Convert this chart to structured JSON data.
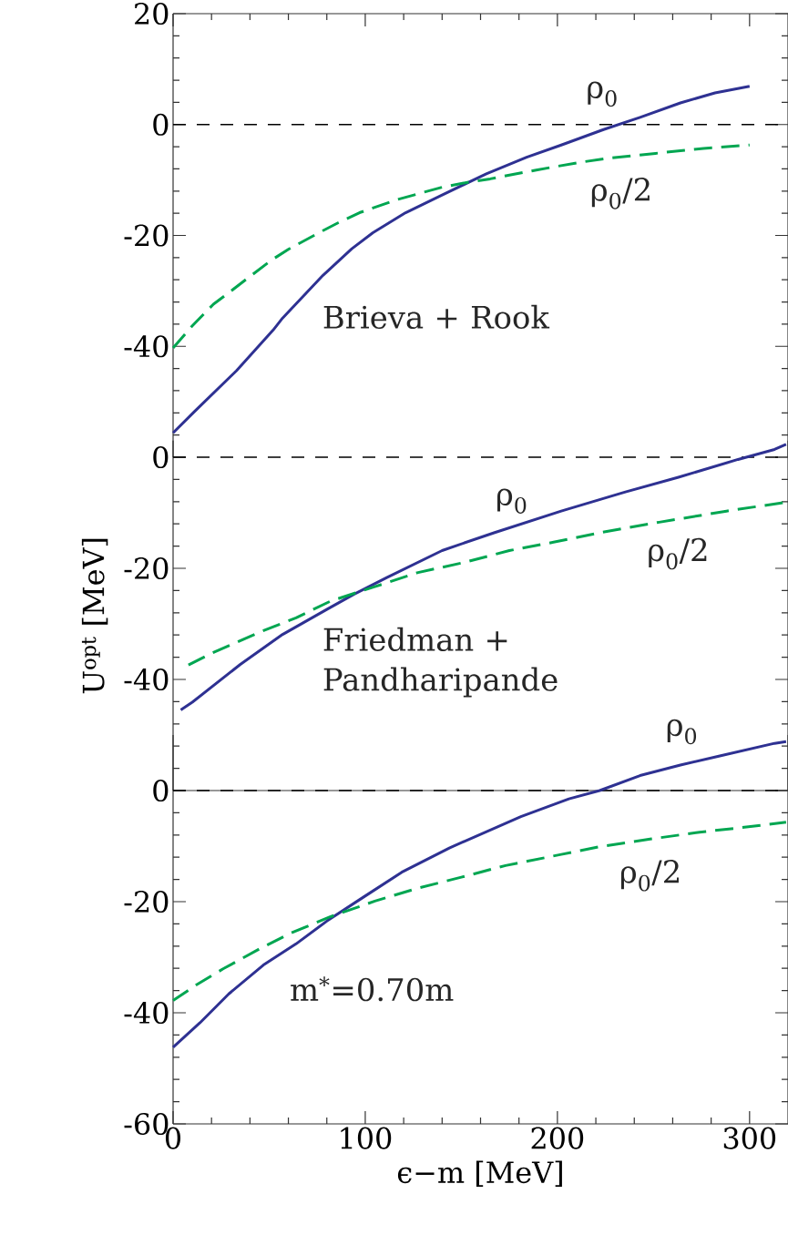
{
  "chart_data": [
    {
      "type": "line",
      "xlim": [
        0,
        320
      ],
      "xticks": [
        0,
        100,
        200,
        300
      ],
      "ylim": [
        -60,
        20
      ],
      "yticks": [
        {
          "value": -60,
          "label": null
        },
        -40,
        -20,
        0,
        20
      ],
      "tick_labels": "y",
      "ref_lines": [
        {
          "axis": "y",
          "value": 0,
          "color": "#000000",
          "line_style": "dashed"
        }
      ],
      "annotations": [
        "Brieva + Rook"
      ],
      "series": [
        {
          "name": "ρ$_{0}$",
          "color": "#2e3192",
          "line_style": "solid",
          "x": [
            0,
            11,
            33,
            52,
            57,
            78,
            93,
            104,
            121,
            140,
            163,
            184,
            202,
            224,
            243,
            264,
            282,
            300
          ],
          "values": [
            -55.6,
            -51.8,
            -44.4,
            -37.1,
            -34.9,
            -27.2,
            -22.4,
            -19.5,
            -15.9,
            -12.7,
            -8.9,
            -5.9,
            -3.7,
            -0.9,
            1.3,
            3.9,
            5.7,
            6.9
          ]
        },
        {
          "name": "ρ$_{0}$/2",
          "color": "#00a651",
          "line_style": "dashed",
          "x": [
            0,
            10,
            21,
            28,
            40,
            51,
            60,
            76,
            86,
            97,
            117,
            140,
            152,
            165,
            189,
            212,
            226,
            251,
            276,
            300
          ],
          "values": [
            -40.3,
            -36.3,
            -32.4,
            -30.6,
            -27.4,
            -24.5,
            -22.5,
            -19.5,
            -17.7,
            -15.9,
            -13.5,
            -11.3,
            -10.5,
            -9.8,
            -8.2,
            -6.8,
            -6.1,
            -5.2,
            -4.3,
            -3.7
          ]
        }
      ]
    },
    {
      "type": "line",
      "xlim": [
        0,
        320
      ],
      "ylim": [
        -60,
        3
      ],
      "yticks": [
        {
          "value": -60,
          "label": null
        },
        -40,
        -20,
        0
      ],
      "tick_labels": "y",
      "ylabel": "U$^{opt}$ [MeV]",
      "ref_lines": [
        {
          "axis": "y",
          "value": 0,
          "color": "#000000",
          "line_style": "dashed"
        }
      ],
      "annotations": [
        "Friedman + Pandharipande"
      ],
      "series": [
        {
          "name": "ρ$_{0}$",
          "color": "#2e3192",
          "line_style": "solid",
          "x": [
            4,
            10,
            35,
            57,
            80,
            94,
            111,
            140,
            167,
            202,
            235,
            263,
            294,
            313,
            319
          ],
          "values": [
            -45.5,
            -44.1,
            -37.3,
            -31.9,
            -27.4,
            -24.7,
            -21.7,
            -16.8,
            -13.6,
            -9.7,
            -6.3,
            -3.6,
            -0.4,
            1.4,
            2.3
          ]
        },
        {
          "name": "ρ$_{0}$/2",
          "color": "#00a651",
          "line_style": "dashed",
          "x": [
            8,
            20,
            45,
            64,
            82,
            105,
            127,
            152,
            175,
            198,
            222,
            253,
            288,
            319
          ],
          "values": [
            -37.4,
            -35.3,
            -31.5,
            -28.9,
            -25.9,
            -23.3,
            -20.8,
            -18.9,
            -16.8,
            -15.3,
            -13.6,
            -11.7,
            -9.7,
            -8.1
          ]
        }
      ]
    },
    {
      "type": "line",
      "xlim": [
        0,
        320
      ],
      "xticks": [
        0,
        100,
        200,
        300
      ],
      "ylim": [
        -60,
        10
      ],
      "yticks": [
        -60,
        -40,
        -20,
        0
      ],
      "xlabel": "ϵ−m [MeV]",
      "ref_lines": [
        {
          "axis": "y",
          "value": 0,
          "color": "#000000",
          "line_style": "dashed"
        }
      ],
      "annotations": [
        "m$^{*}$=0.70m"
      ],
      "series": [
        {
          "name": "ρ$_{0}$",
          "color": "#2e3192",
          "line_style": "solid",
          "x": [
            0,
            14,
            29,
            47,
            64,
            80,
            99,
            119,
            144,
            181,
            206,
            222,
            243,
            264,
            284,
            313,
            319
          ],
          "values": [
            -46.2,
            -41.8,
            -36.6,
            -31.4,
            -27.6,
            -23.5,
            -19.2,
            -14.7,
            -10.3,
            -4.7,
            -1.5,
            0,
            2.7,
            4.6,
            6.2,
            8.5,
            8.8
          ]
        },
        {
          "name": "ρ$_{0}$/2",
          "color": "#00a651",
          "line_style": "dashed",
          "x": [
            0,
            12,
            26,
            45,
            61,
            82,
            105,
            127,
            150,
            173,
            202,
            222,
            249,
            274,
            295,
            319
          ],
          "values": [
            -37.8,
            -35,
            -32.1,
            -28.5,
            -25.7,
            -22.7,
            -19.9,
            -17.6,
            -15.6,
            -13.5,
            -11.5,
            -10.1,
            -8.7,
            -7.5,
            -6.7,
            -5.7
          ]
        }
      ]
    }
  ]
}
